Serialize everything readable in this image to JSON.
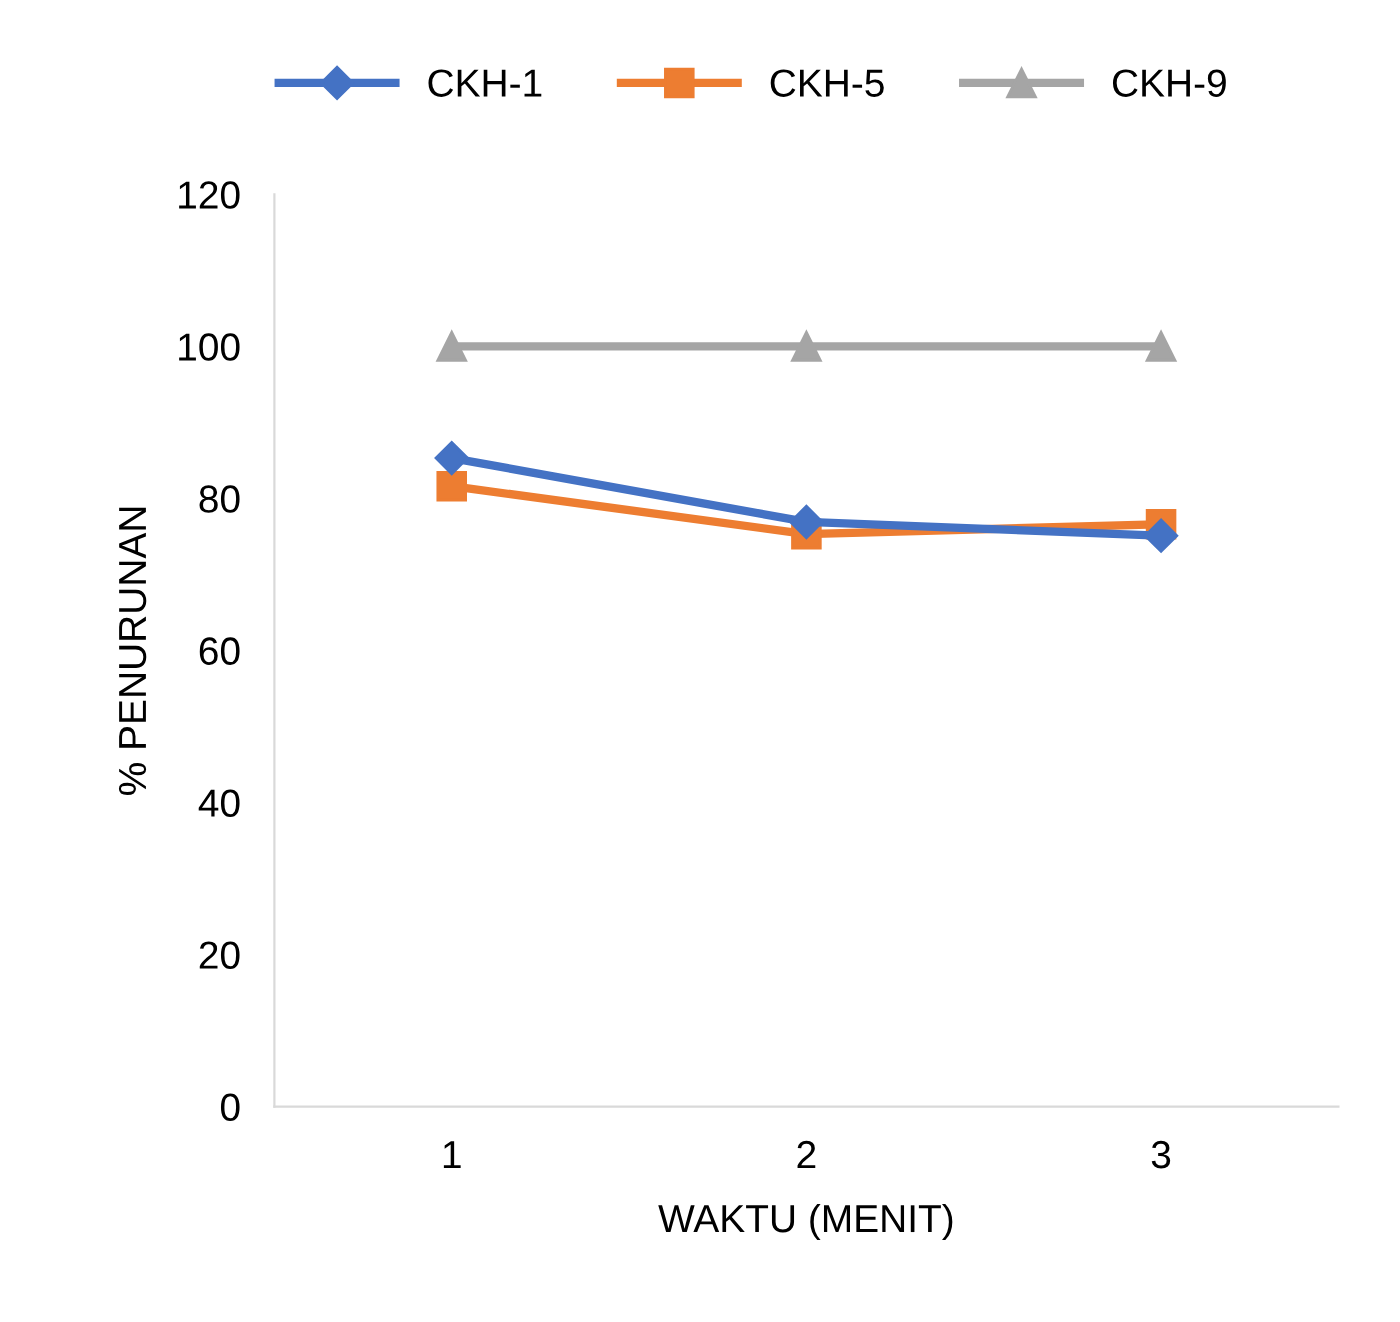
{
  "chart_data": {
    "type": "line",
    "xlabel": "WAKTU (MENIT)",
    "ylabel": "% PENURUNAN",
    "categories": [
      "1",
      "2",
      "3"
    ],
    "series": [
      {
        "name": "CKH-1",
        "color": "#4472c4",
        "marker": "diamond",
        "values": [
          85.3,
          76.9,
          75.1
        ]
      },
      {
        "name": "CKH-5",
        "color": "#ed7d31",
        "marker": "square",
        "values": [
          81.6,
          75.3,
          76.6
        ]
      },
      {
        "name": "CKH-9",
        "color": "#a5a5a5",
        "marker": "triangle",
        "values": [
          100,
          100,
          100
        ]
      }
    ],
    "ylim": [
      0,
      120
    ],
    "yticks": [
      0,
      20,
      40,
      60,
      80,
      100,
      120
    ],
    "grid": false,
    "legend": "top",
    "line_style": "solid"
  }
}
